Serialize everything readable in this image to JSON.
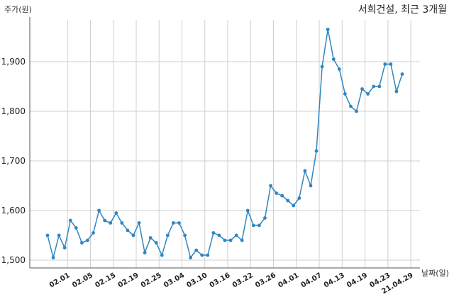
{
  "chart_data": {
    "type": "line",
    "title": "서희건설, 최근 3개월",
    "xlabel": "날짜(일)",
    "ylabel": "주가(원)",
    "ylim": [
      1500,
      1970
    ],
    "yticks": [
      1500,
      1600,
      1700,
      1800,
      1900
    ],
    "ytick_labels": [
      "1,500",
      "1,600",
      "1,700",
      "1,800",
      "1,900"
    ],
    "grid": true,
    "color": "#2e86c1",
    "xtick_labels": [
      "02.01",
      "02.05",
      "02.15",
      "02.19",
      "02.25",
      "03.04",
      "03.10",
      "03.16",
      "03.22",
      "03.26",
      "04.01",
      "04.07",
      "04.13",
      "04.19",
      "04.23",
      "21.04.29"
    ],
    "xtick_positions": [
      3.5,
      7.5,
      11.5,
      15.5,
      19.5,
      23.5,
      27.5,
      31.5,
      35.5,
      39.5,
      43.5,
      47.5,
      51.5,
      55.5,
      59.5,
      63.5
    ],
    "series": [
      {
        "values": [
          1550,
          1505,
          1550,
          1525,
          1580,
          1565,
          1535,
          1540,
          1555,
          1600,
          1580,
          1575,
          1595,
          1575,
          1560,
          1550,
          1575,
          1515,
          1545,
          1535,
          1510,
          1550,
          1575,
          1575,
          1550,
          1505,
          1520,
          1510,
          1510,
          1555,
          1550,
          1540,
          1540,
          1550,
          1540,
          1600,
          1570,
          1570,
          1585,
          1650,
          1635,
          1630,
          1620,
          1610,
          1625,
          1680,
          1650,
          1720,
          1890,
          1965,
          1905,
          1885,
          1835,
          1810,
          1800,
          1845,
          1835,
          1850,
          1850,
          1895,
          1895,
          1840,
          1875
        ]
      }
    ]
  }
}
